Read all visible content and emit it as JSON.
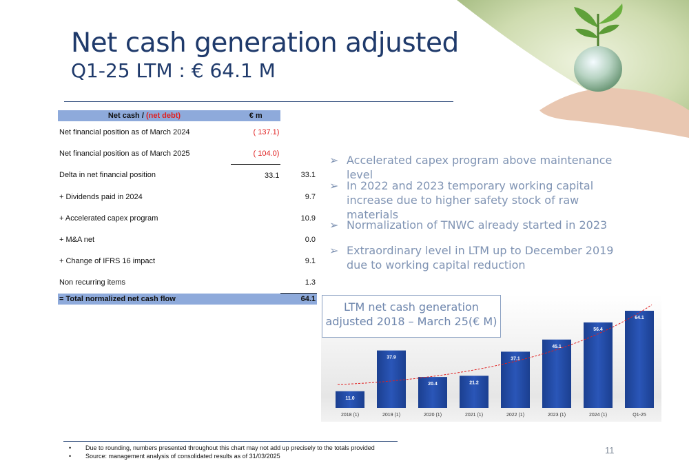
{
  "title": "Net cash generation adjusted",
  "subtitle": "Q1-25 LTM : € 64.1 M",
  "table": {
    "header_label_a": "Net cash / ",
    "header_label_b": "(net debt)",
    "header_label_c": ")",
    "header_unit": "€ m",
    "rows": [
      {
        "label": "Net financial position as of March 2024",
        "v1": "( 137.1)",
        "v2": ""
      },
      {
        "label": "Net financial position as of March 2025",
        "v1": "( 104.0)",
        "v2": ""
      },
      {
        "label": "Delta in net financial position",
        "v1": "33.1",
        "v2": "33.1"
      },
      {
        "label": " + Dividends paid in 2024",
        "v1": "",
        "v2": "9.7"
      },
      {
        "label": " + Accelerated capex program",
        "v1": "",
        "v2": "10.9"
      },
      {
        "label": " + M&A net",
        "v1": "",
        "v2": "0.0"
      },
      {
        "label": " + Change of IFRS 16 impact",
        "v1": "",
        "v2": "9.1"
      },
      {
        "label": "Non recurring items",
        "v1": "",
        "v2": "1.3"
      }
    ],
    "total": {
      "label": "= Total normalized net cash flow",
      "value": "64.1"
    }
  },
  "bullets": [
    "Accelerated capex program above maintenance level",
    "In 2022 and 2023 temporary working capital increase due to higher safety stock of raw materials",
    "Normalization of TNWC already started in 2023",
    "Extraordinary level in LTM up to December 2019 due to working capital reduction"
  ],
  "bullet_glyph": "➢",
  "chart_title_line1": "LTM net cash generation",
  "chart_title_line2": "adjusted 2018 – March 25(€ M)",
  "chart_data": {
    "type": "bar",
    "title": "LTM net cash generation adjusted 2018 – March 25(€ M)",
    "categories": [
      "2018 (1)",
      "2019 (1)",
      "2020 (1)",
      "2021 (1)",
      "2022 (1)",
      "2023 (1)",
      "2024 (1)",
      "Q1-25"
    ],
    "values": [
      11.0,
      37.9,
      20.4,
      21.2,
      37.1,
      45.1,
      56.4,
      64.1
    ],
    "labels": [
      "11.0",
      "37.9",
      "20.4",
      "21.2",
      "37.1",
      "45.1",
      "56.4",
      "64.1"
    ],
    "ylim": [
      0,
      70
    ],
    "trendline": true,
    "colors": {
      "bar": "#2a56b8",
      "trend": "#e02020"
    }
  },
  "footnotes": [
    "Due to rounding, numbers presented throughout this chart may not add up precisely to the totals provided",
    "Source: management analysis of consolidated results as of 31/03/2025"
  ],
  "footnote_glyph": "•",
  "page_number": "11"
}
